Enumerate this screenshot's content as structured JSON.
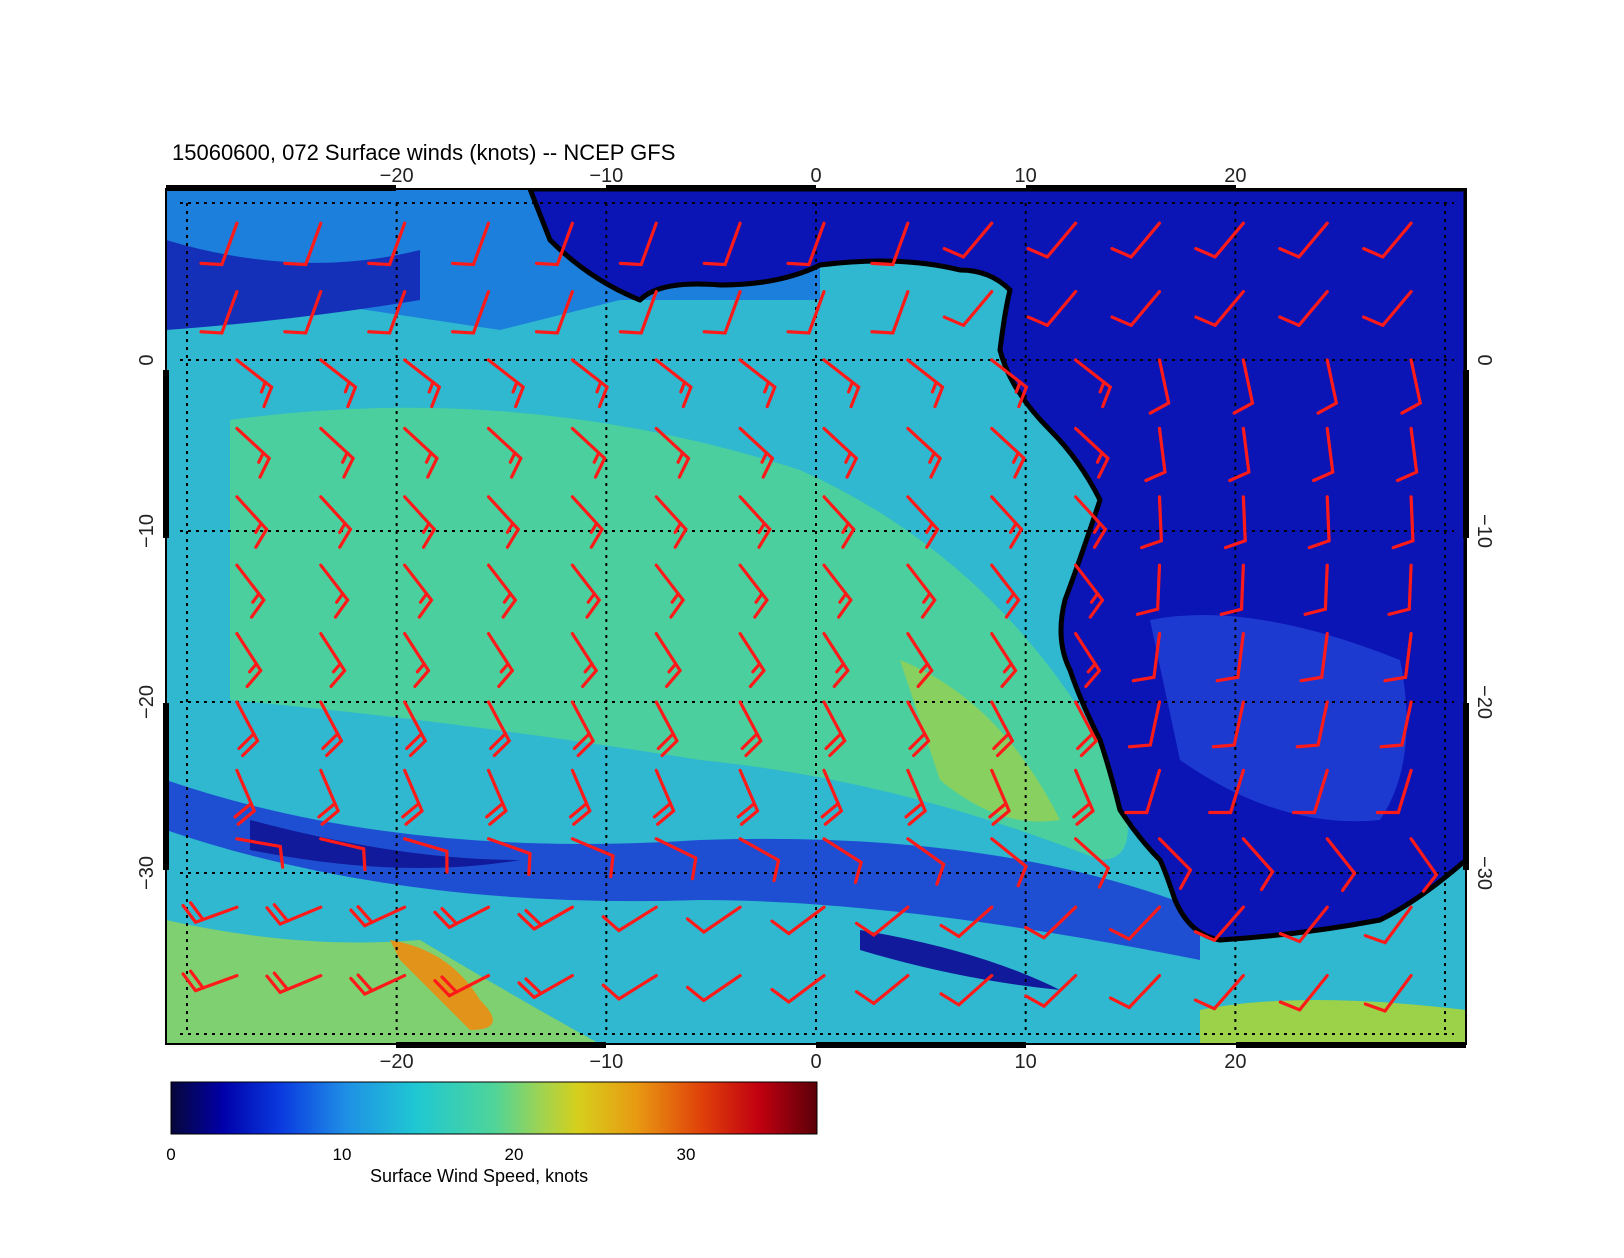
{
  "title": "15060600, 072 Surface winds (knots) -- NCEP GFS",
  "map": {
    "lon_range": [
      -31,
      31
    ],
    "lat_range": [
      10,
      -40
    ],
    "lon_ticks": [
      -20,
      -10,
      0,
      10,
      20
    ],
    "lon_tick_labels": [
      "−20",
      "−10",
      "0",
      "10",
      "20"
    ],
    "lat_ticks": [
      0,
      -10,
      -20,
      -30
    ],
    "lat_tick_labels": [
      "0",
      "−10",
      "−20",
      "−30"
    ],
    "gridlines": "dotted",
    "land_color": "#0b14b4",
    "coastline_color": "#000000",
    "barb_color": "#ff1a1a"
  },
  "colorbar": {
    "min": 0,
    "max": 37,
    "ticks": [
      0,
      10,
      20,
      30
    ],
    "tick_labels": [
      "0",
      "10",
      "20",
      "30"
    ],
    "label": "Surface Wind Speed, knots",
    "colors": [
      "#07073a",
      "#0000a8",
      "#0a3ae0",
      "#1f8fe6",
      "#1fc8d2",
      "#4fd49a",
      "#a6d34a",
      "#d6cf1c",
      "#e89a12",
      "#e0420a",
      "#c10010",
      "#5a0008"
    ]
  }
}
